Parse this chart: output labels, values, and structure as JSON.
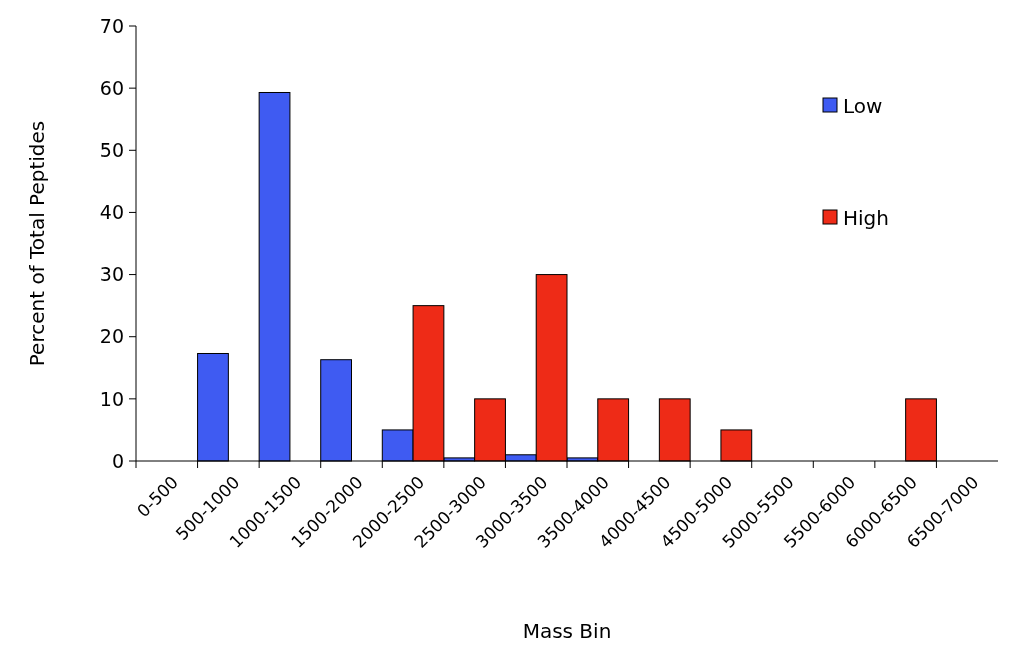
{
  "chart_data": {
    "type": "bar",
    "xlabel": "Mass Bin",
    "ylabel": "Percent of Total Peptides",
    "categories": [
      "0-500",
      "500-1000",
      "1000-1500",
      "1500-2000",
      "2000-2500",
      "2500-3000",
      "3000-3500",
      "3500-4000",
      "4000-4500",
      "4500-5000",
      "5000-5500",
      "5500-6000",
      "6000-6500",
      "6500-7000"
    ],
    "series": [
      {
        "name": "Low",
        "color": "#3f5bf2",
        "values": [
          0,
          17.3,
          59.3,
          16.3,
          5,
          0.5,
          1,
          0.5,
          0,
          0,
          0,
          0,
          0,
          0
        ]
      },
      {
        "name": "High",
        "color": "#ee2b17",
        "values": [
          0,
          0,
          0,
          0,
          25,
          10,
          30,
          10,
          10,
          5,
          0,
          0,
          10,
          0
        ]
      }
    ],
    "ylim": [
      0,
      70
    ],
    "yticks": [
      0,
      10,
      20,
      30,
      40,
      50,
      60,
      70
    ],
    "grid": false,
    "legend": "top right"
  }
}
